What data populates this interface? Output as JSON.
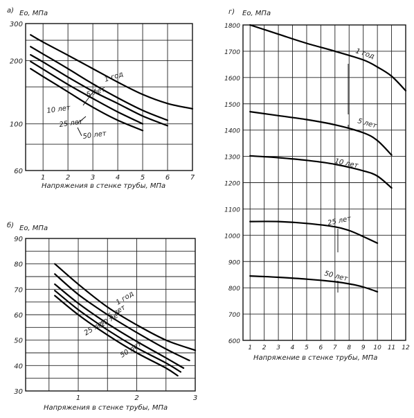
{
  "chart_data": [
    {
      "panel_label": "а)",
      "type": "line",
      "ylabel": "Eo, МПа",
      "xlabel": "Напряжения в стенке трубы, МПа",
      "xlim": [
        0.3,
        7
      ],
      "ylim": [
        60,
        300
      ],
      "x_ticks": [
        "1",
        "2",
        "3",
        "4",
        "5",
        "6",
        "7"
      ],
      "y_ticks": [
        "300",
        "200",
        "100",
        "60"
      ],
      "series": [
        {
          "name": "1 год",
          "x": [
            0.5,
            1,
            2,
            3,
            4,
            5,
            6,
            7
          ],
          "values": [
            265,
            245,
            212,
            183,
            158,
            138,
            125,
            118
          ]
        },
        {
          "name": "5 лет",
          "x": [
            0.5,
            1,
            2,
            3,
            4,
            5,
            6
          ],
          "values": [
            233,
            215,
            183,
            155,
            133,
            116,
            104
          ]
        },
        {
          "name": "10 лет",
          "x": [
            0.5,
            1,
            2,
            3,
            4,
            5,
            6
          ],
          "values": [
            213,
            197,
            167,
            143,
            125,
            109,
            98
          ]
        },
        {
          "name": "25 лет",
          "x": [
            0.5,
            1,
            2,
            3,
            4,
            5
          ],
          "values": [
            198,
            182,
            154,
            132,
            114,
            100
          ]
        },
        {
          "name": "50 лет",
          "x": [
            0.5,
            1,
            2,
            3,
            4,
            5
          ],
          "values": [
            183,
            168,
            142,
            120,
            104,
            93
          ]
        }
      ]
    },
    {
      "panel_label": "б)",
      "type": "line",
      "ylabel": "Eo, МПа",
      "xlabel": "Напряжения в стенке трубы, МПа",
      "xlim": [
        0.1,
        3
      ],
      "ylim": [
        30,
        90
      ],
      "x_ticks": [
        "1",
        "2",
        "3"
      ],
      "y_ticks": [
        "90",
        "80",
        "70",
        "60",
        "50",
        "40",
        "30"
      ],
      "series": [
        {
          "name": "1 год",
          "x": [
            0.6,
            1,
            1.5,
            2,
            2.5,
            3
          ],
          "values": [
            80,
            72,
            63,
            56,
            50,
            46
          ]
        },
        {
          "name": "5 лет",
          "x": [
            0.6,
            1,
            1.5,
            2,
            2.5,
            2.9
          ],
          "values": [
            76,
            68,
            60,
            53,
            46.5,
            42
          ]
        },
        {
          "name": "10 лет",
          "x": [
            0.6,
            1,
            1.5,
            2,
            2.5,
            2.8
          ],
          "values": [
            72,
            64.5,
            56.5,
            49.5,
            43,
            39
          ]
        },
        {
          "name": "25 лет",
          "x": [
            0.6,
            1,
            1.5,
            2,
            2.5,
            2.75
          ],
          "values": [
            69.5,
            62,
            54,
            47,
            41,
            37.5
          ]
        },
        {
          "name": "50 лет",
          "x": [
            0.6,
            1,
            1.5,
            2,
            2.5,
            2.7
          ],
          "values": [
            67.5,
            60,
            52,
            45,
            39,
            36
          ]
        }
      ]
    },
    {
      "panel_label": "г)",
      "type": "line",
      "ylabel": "Eo, МПа",
      "xlabel": "Напряжение в стенке трубы, МПа",
      "xlim": [
        0.5,
        12
      ],
      "ylim": [
        600,
        1800
      ],
      "x_ticks": [
        "1",
        "2",
        "3",
        "4",
        "5",
        "6",
        "7",
        "8",
        "9",
        "10",
        "11",
        "12"
      ],
      "y_ticks": [
        "1800",
        "1700",
        "1600",
        "1500",
        "1400",
        "1300",
        "1200",
        "1100",
        "1000",
        "900",
        "800",
        "700",
        "600"
      ],
      "series": [
        {
          "name": "1 год",
          "x": [
            1,
            3,
            5,
            7,
            9,
            10,
            11,
            12
          ],
          "values": [
            1800,
            1765,
            1730,
            1700,
            1667,
            1640,
            1605,
            1550
          ]
        },
        {
          "name": "5 лет",
          "x": [
            1,
            3,
            5,
            7,
            9,
            10,
            11
          ],
          "values": [
            1470,
            1455,
            1440,
            1420,
            1390,
            1360,
            1305
          ]
        },
        {
          "name": "10 лет",
          "x": [
            1,
            3,
            5,
            7,
            9,
            10,
            11
          ],
          "values": [
            1302,
            1295,
            1285,
            1270,
            1245,
            1225,
            1180
          ]
        },
        {
          "name": "25 лет",
          "x": [
            1,
            3,
            5,
            7,
            8,
            9,
            10
          ],
          "values": [
            1052,
            1052,
            1045,
            1032,
            1018,
            995,
            970
          ]
        },
        {
          "name": "50 лет",
          "x": [
            1,
            3,
            5,
            7,
            8,
            9,
            10
          ],
          "values": [
            845,
            840,
            833,
            823,
            815,
            803,
            785
          ]
        }
      ]
    }
  ]
}
